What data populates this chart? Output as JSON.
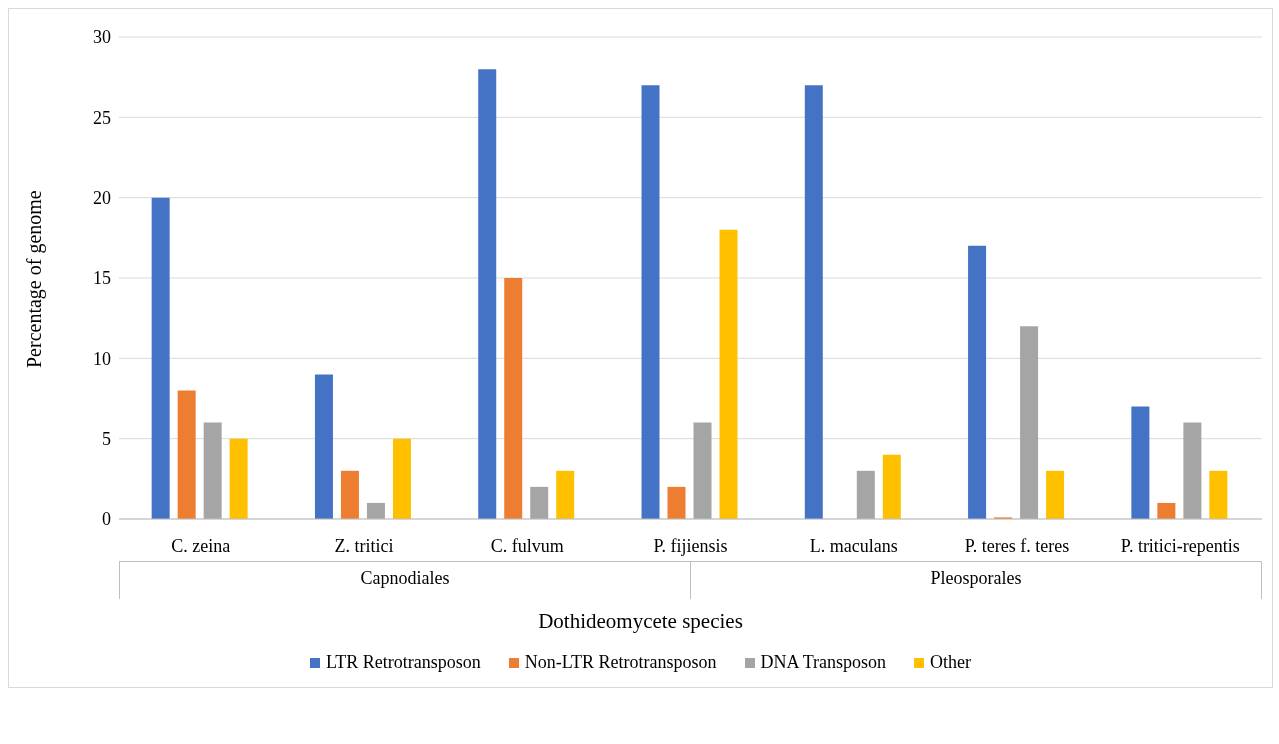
{
  "chart_data": {
    "type": "bar",
    "xlabel": "Dothideomycete species",
    "ylabel": "Percentage of genome",
    "categories": [
      "C. zeina",
      "Z. tritici",
      "C. fulvum",
      "P. fijiensis",
      "L. maculans",
      "P. teres f. teres",
      "P. tritici-repentis"
    ],
    "series": [
      {
        "name": "LTR Retrotransposon",
        "color": "#4472c4",
        "values": [
          20,
          9,
          28,
          27,
          27,
          17,
          7
        ]
      },
      {
        "name": "Non-LTR Retrotransposon",
        "color": "#ed7d31",
        "values": [
          8,
          3,
          15,
          2,
          0,
          0.1,
          1
        ]
      },
      {
        "name": "DNA Transposon",
        "color": "#a5a5a5",
        "values": [
          6,
          1,
          2,
          6,
          3,
          12,
          6
        ]
      },
      {
        "name": "Other",
        "color": "#ffc000",
        "values": [
          5,
          5,
          3,
          18,
          4,
          3,
          3
        ]
      }
    ],
    "annotations": [
      "Capnodiales",
      "Pleosporales"
    ],
    "ylim": [
      0,
      30
    ],
    "yticks": [
      0,
      5,
      10,
      15,
      20,
      25,
      30
    ],
    "grid": "y",
    "legend": "bottom"
  }
}
